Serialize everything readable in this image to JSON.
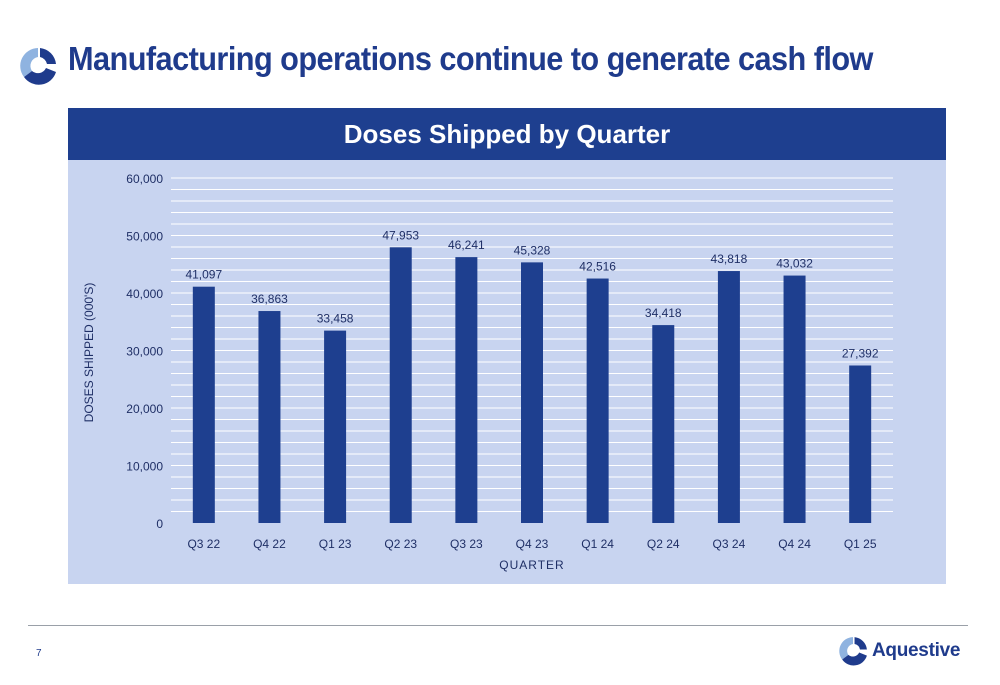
{
  "slide": {
    "title": "Manufacturing operations continue to generate cash flow",
    "page_number": "7",
    "brand": "Aquestive"
  },
  "colors": {
    "title": "#1f3b8c",
    "header_bg": "#1e3f8f",
    "panel_bg": "#c8d4f0",
    "bar": "#1e3f8f",
    "logo_light": "#8fb3e0"
  },
  "icons": {
    "logo": "aquestive-logo-icon"
  },
  "chart_data": {
    "type": "bar",
    "title": "Doses Shipped by Quarter",
    "xlabel": "QUARTER",
    "ylabel": "DOSES SHIPPED (000'S)",
    "categories": [
      "Q3 22",
      "Q4 22",
      "Q1 23",
      "Q2 23",
      "Q3 23",
      "Q4 23",
      "Q1 24",
      "Q2 24",
      "Q3 24",
      "Q4 24",
      "Q1 25"
    ],
    "values": [
      41097,
      36863,
      33458,
      47953,
      46241,
      45328,
      42516,
      34418,
      43818,
      43032,
      27392
    ],
    "value_labels": [
      "41,097",
      "36,863",
      "33,458",
      "47,953",
      "46,241",
      "45,328",
      "42,516",
      "34,418",
      "43,818",
      "43,032",
      "27,392"
    ],
    "ylim": [
      0,
      60000
    ],
    "yticks": [
      0,
      10000,
      20000,
      30000,
      40000,
      50000,
      60000
    ],
    "ytick_labels": [
      "0",
      "10,000",
      "20,000",
      "30,000",
      "40,000",
      "50,000",
      "60,000"
    ],
    "minor_gridline_step": 2000,
    "grid": true,
    "legend": "none"
  }
}
